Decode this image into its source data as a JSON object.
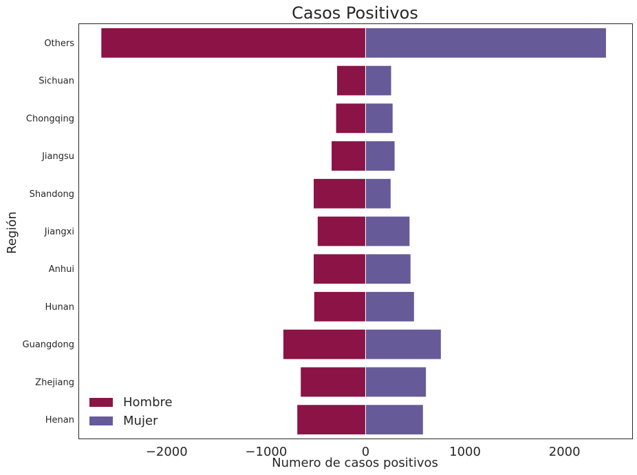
{
  "chart_data": {
    "type": "bar",
    "orientation": "horizontal",
    "title": "Casos Positivos",
    "xlabel": "Numero de casos positivos",
    "ylabel": "Región",
    "categories": [
      "Others",
      "Sichuan",
      "Chongqing",
      "Jiangsu",
      "Shandong",
      "Jiangxi",
      "Anhui",
      "Hunan",
      "Guangdong",
      "Zhejiang",
      "Henan"
    ],
    "series": [
      {
        "name": "Hombre",
        "color": "#8b1345",
        "values": [
          -2660,
          -290,
          -300,
          -345,
          -525,
          -485,
          -525,
          -520,
          -830,
          -655,
          -690
        ]
      },
      {
        "name": "Mujer",
        "color": "#665a99",
        "values": [
          2420,
          260,
          275,
          295,
          255,
          445,
          455,
          490,
          760,
          610,
          580
        ]
      }
    ],
    "xlim": [
      -2880,
      2680
    ],
    "xticks": [
      -2000,
      -1000,
      0,
      1000,
      2000
    ],
    "xtick_labels": [
      "−2000",
      "−1000",
      "0",
      "1000",
      "2000"
    ],
    "grid": false,
    "legend_position": "lower-left"
  }
}
